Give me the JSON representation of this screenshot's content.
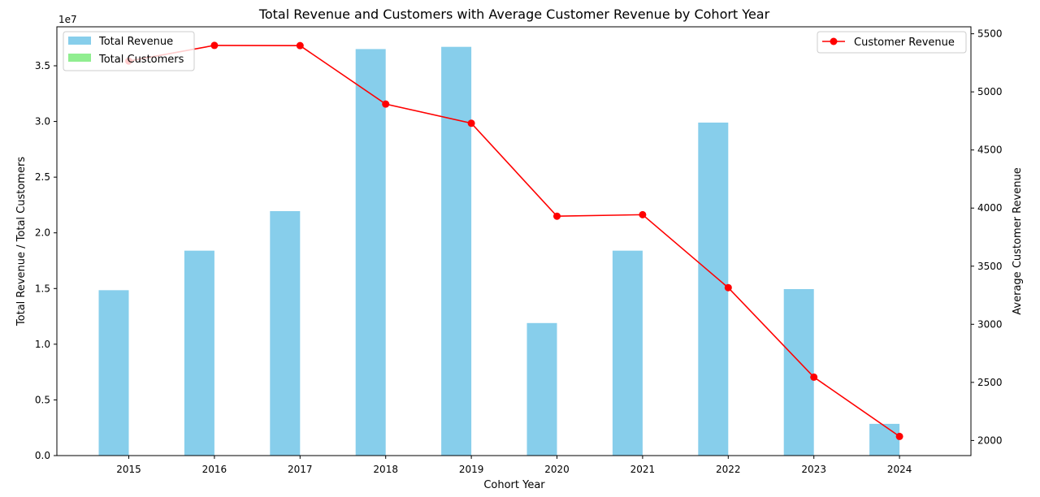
{
  "chart_data": {
    "type": "bar",
    "title": "Total Revenue and Customers with Average Customer Revenue by Cohort Year",
    "xlabel": "Cohort Year",
    "ylabel_left": "Total Revenue / Total Customers",
    "ylabel_right": "Average Customer Revenue",
    "left_axis_multiplier": "1e7",
    "categories": [
      "2015",
      "2016",
      "2017",
      "2018",
      "2019",
      "2020",
      "2021",
      "2022",
      "2023",
      "2024"
    ],
    "left_ylim": [
      0,
      3.85
    ],
    "left_ticks": [
      0.0,
      0.5,
      1.0,
      1.5,
      2.0,
      2.5,
      3.0,
      3.5
    ],
    "left_tick_labels": [
      "0.0",
      "0.5",
      "1.0",
      "1.5",
      "2.0",
      "2.5",
      "3.0",
      "3.5"
    ],
    "right_ylim": [
      1870,
      5560
    ],
    "right_ticks": [
      2000,
      2500,
      3000,
      3500,
      4000,
      4500,
      5000,
      5500
    ],
    "right_tick_labels": [
      "2000",
      "2500",
      "3000",
      "3500",
      "4000",
      "4500",
      "5000",
      "5500"
    ],
    "grid": false,
    "series": [
      {
        "name": "Total Revenue",
        "kind": "bar",
        "axis": "left",
        "color": "#87ceeb",
        "values": [
          1.485,
          1.84,
          2.195,
          3.65,
          3.67,
          1.19,
          1.84,
          2.99,
          1.495,
          0.285
        ]
      },
      {
        "name": "Total Customers",
        "kind": "bar",
        "axis": "left",
        "color": "#90ee90",
        "values": [
          0.0003,
          0.0003,
          0.0004,
          0.0007,
          0.0008,
          0.0003,
          0.0005,
          0.0009,
          0.0006,
          0.0001
        ]
      },
      {
        "name": "Customer Revenue",
        "kind": "line",
        "axis": "right",
        "color": "#ff0000",
        "marker": "circle",
        "values": [
          5265,
          5400,
          5398,
          4895,
          4730,
          3930,
          3943,
          3315,
          2545,
          2035
        ]
      }
    ],
    "legend_left_position": "upper-left",
    "legend_right_position": "upper-right"
  }
}
